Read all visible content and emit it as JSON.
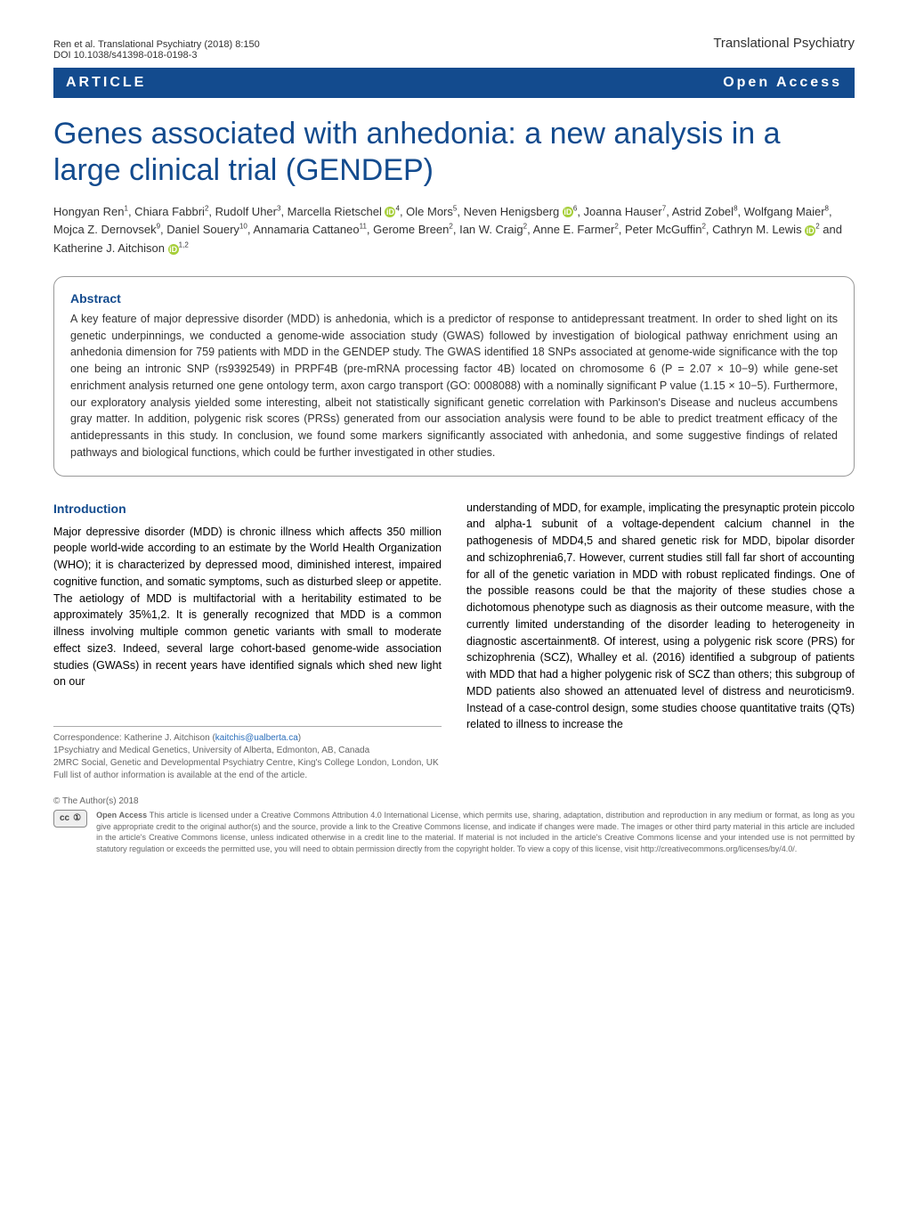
{
  "header": {
    "citation": "Ren et al. Translational Psychiatry   (2018) 8:150",
    "doi": "DOI 10.1038/s41398-018-0198-3",
    "journal": "Translational Psychiatry"
  },
  "article_bar": {
    "type": "ARTICLE",
    "access": "Open Access"
  },
  "title": "Genes associated with anhedonia: a new analysis in a large clinical trial (GENDEP)",
  "authors_html": "Hongyan Ren<sup>1</sup>, Chiara Fabbri<sup>2</sup>, Rudolf Uher<sup>3</sup>, Marcella Rietschel <span class='orcid-icon' data-name='orcid-icon' data-interactable='false'>iD</span><sup>4</sup>, Ole Mors<sup>5</sup>, Neven Henigsberg <span class='orcid-icon' data-name='orcid-icon' data-interactable='false'>iD</span><sup>6</sup>, Joanna Hauser<sup>7</sup>, Astrid Zobel<sup>8</sup>, Wolfgang Maier<sup>8</sup>, Mojca Z. Dernovsek<sup>9</sup>, Daniel Souery<sup>10</sup>, Annamaria Cattaneo<sup>11</sup>, Gerome Breen<sup>2</sup>, Ian W. Craig<sup>2</sup>, Anne E. Farmer<sup>2</sup>, Peter McGuffin<sup>2</sup>, Cathryn M. Lewis <span class='orcid-icon' data-name='orcid-icon' data-interactable='false'>iD</span><sup>2</sup> and Katherine J. Aitchison <span class='orcid-icon' data-name='orcid-icon' data-interactable='false'>iD</span><sup>1,2</sup>",
  "abstract": {
    "heading": "Abstract",
    "text": "A key feature of major depressive disorder (MDD) is anhedonia, which is a predictor of response to antidepressant treatment. In order to shed light on its genetic underpinnings, we conducted a genome-wide association study (GWAS) followed by investigation of biological pathway enrichment using an anhedonia dimension for 759 patients with MDD in the GENDEP study. The GWAS identified 18 SNPs associated at genome-wide significance with the top one being an intronic SNP (rs9392549) in PRPF4B (pre-mRNA processing factor 4B) located on chromosome 6 (P = 2.07 × 10−9) while gene-set enrichment analysis returned one gene ontology term, axon cargo transport (GO: 0008088) with a nominally significant P value (1.15 × 10−5). Furthermore, our exploratory analysis yielded some interesting, albeit not statistically significant genetic correlation with Parkinson's Disease and nucleus accumbens gray matter. In addition, polygenic risk scores (PRSs) generated from our association analysis were found to be able to predict treatment efficacy of the antidepressants in this study. In conclusion, we found some markers significantly associated with anhedonia, and some suggestive findings of related pathways and biological functions, which could be further investigated in other studies."
  },
  "introduction": {
    "heading": "Introduction",
    "col1": "Major depressive disorder (MDD) is chronic illness which affects 350 million people world-wide according to an estimate by the World Health Organization (WHO); it is characterized by depressed mood, diminished interest, impaired cognitive function, and somatic symptoms, such as disturbed sleep or appetite. The aetiology of MDD is multifactorial with a heritability estimated to be approximately 35%1,2. It is generally recognized that MDD is a common illness involving multiple common genetic variants with small to moderate effect size3. Indeed, several large cohort-based genome-wide association studies (GWASs) in recent years have identified signals which shed new light on our",
    "col2": "understanding of MDD, for example, implicating the presynaptic protein piccolo and alpha-1 subunit of a voltage-dependent calcium channel in the pathogenesis of MDD4,5 and shared genetic risk for MDD, bipolar disorder and schizophrenia6,7. However, current studies still fall far short of accounting for all of the genetic variation in MDD with robust replicated findings. One of the possible reasons could be that the majority of these studies chose a dichotomous phenotype such as diagnosis as their outcome measure, with the currently limited understanding of the disorder leading to heterogeneity in diagnostic ascertainment8. Of interest, using a polygenic risk score (PRS) for schizophrenia (SCZ), Whalley et al. (2016) identified a subgroup of patients with MDD that had a higher polygenic risk of SCZ than others; this subgroup of MDD patients also showed an attenuated level of distress and neuroticism9. Instead of a case-control design, some studies choose quantitative traits (QTs) related to illness to increase the"
  },
  "correspondence": {
    "line1": "Correspondence: Katherine J. Aitchison (kaitchis@ualberta.ca)",
    "aff1": "1Psychiatry and Medical Genetics, University of Alberta, Edmonton, AB, Canada",
    "aff2": "2MRC Social, Genetic and Developmental Psychiatry Centre, King's College London, London, UK",
    "full_list": "Full list of author information is available at the end of the article."
  },
  "copyright": "© The Author(s) 2018",
  "license": {
    "badge": "cc  ①  BY",
    "bold": "Open Access",
    "text": " This article is licensed under a Creative Commons Attribution 4.0 International License, which permits use, sharing, adaptation, distribution and reproduction in any medium or format, as long as you give appropriate credit to the original author(s) and the source, provide a link to the Creative Commons license, and indicate if changes were made. The images or other third party material in this article are included in the article's Creative Commons license, unless indicated otherwise in a credit line to the material. If material is not included in the article's Creative Commons license and your intended use is not permitted by statutory regulation or exceeds the permitted use, you will need to obtain permission directly from the copyright holder. To view a copy of this license, visit http://creativecommons.org/licenses/by/4.0/."
  },
  "colors": {
    "brand_blue": "#134b8e",
    "link_blue": "#2a6ebb",
    "orcid_green": "#a6ce39",
    "text_gray": "#333333",
    "light_gray": "#666666",
    "border_gray": "#999999",
    "background": "#ffffff"
  },
  "typography": {
    "title_fontsize": 34,
    "body_fontsize": 12.5,
    "abstract_fontsize": 12.5,
    "heading_fontsize": 14,
    "footer_fontsize": 10,
    "license_fontsize": 9
  }
}
